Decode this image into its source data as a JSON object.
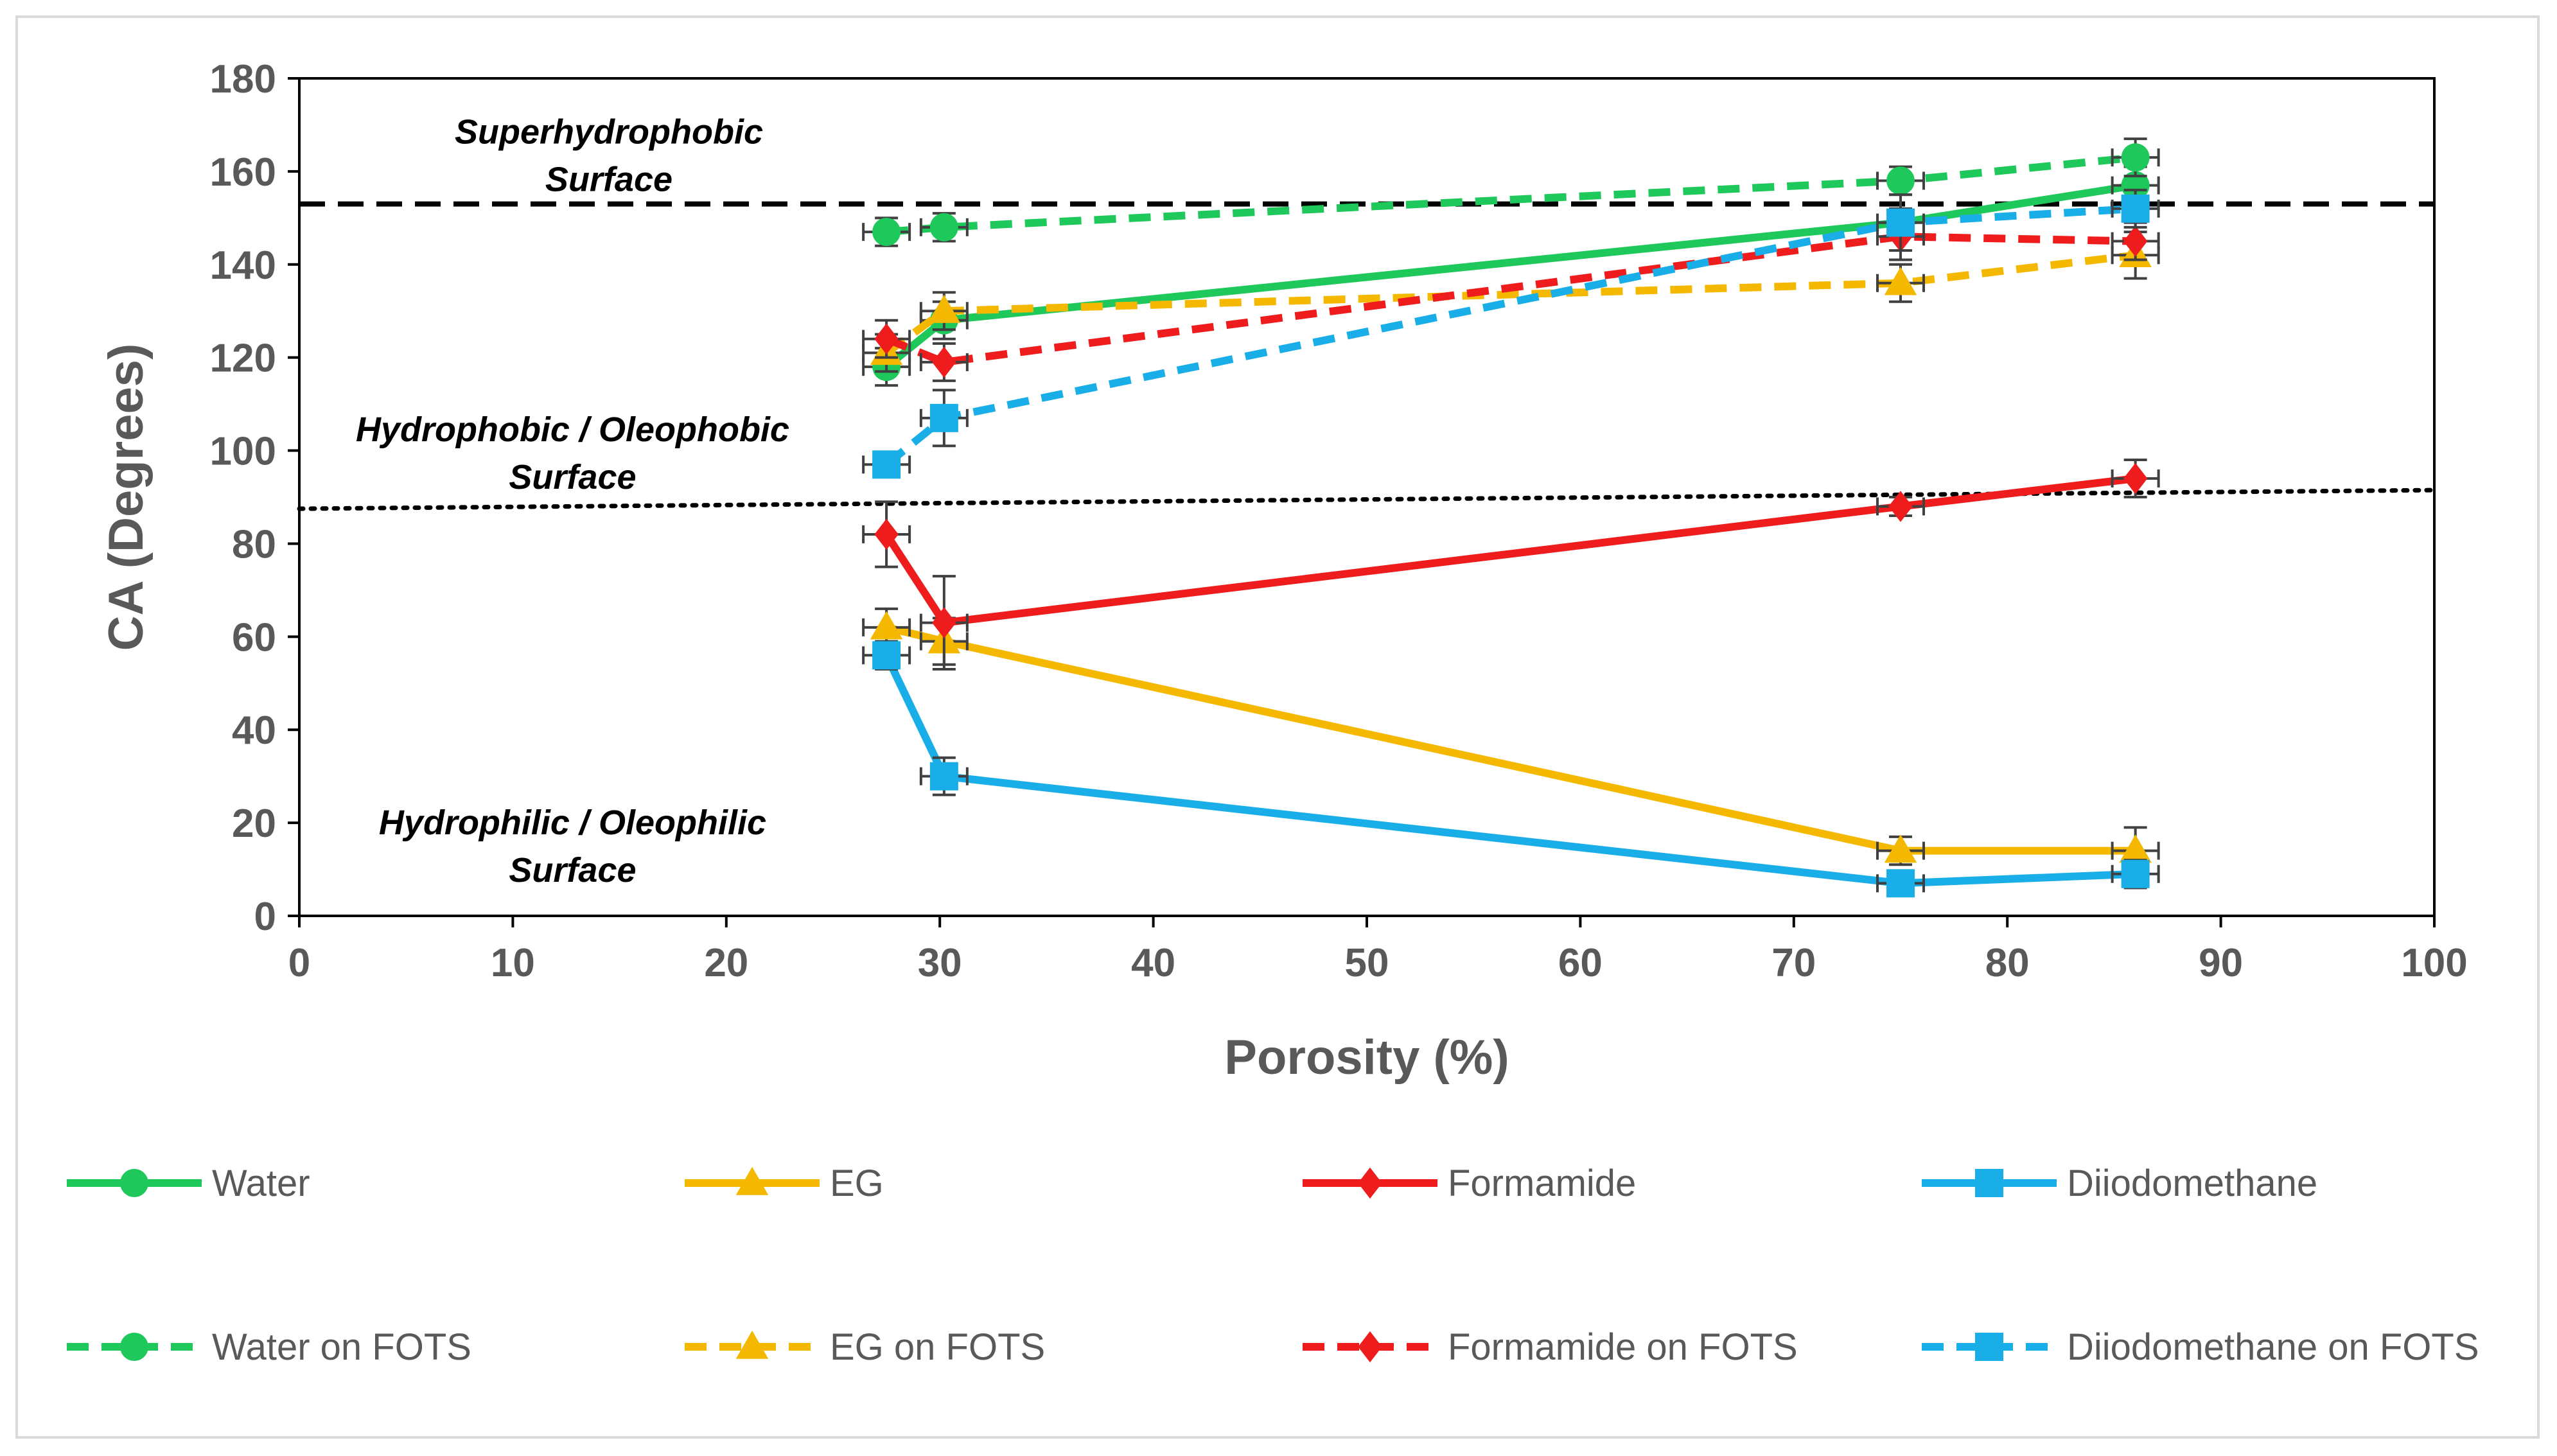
{
  "chart_data": {
    "type": "line",
    "xlabel": "Porosity  (%)",
    "ylabel": "CA (Degrees)",
    "xlim": [
      0,
      100
    ],
    "ylim": [
      0,
      180
    ],
    "xticks": [
      0,
      10,
      20,
      30,
      40,
      50,
      60,
      70,
      80,
      90,
      100
    ],
    "yticks": [
      0,
      20,
      40,
      60,
      80,
      100,
      120,
      140,
      160,
      180
    ],
    "grid": false,
    "legend_position": "bottom",
    "colors": {
      "green": "#1ec85a",
      "gold": "#f5b800",
      "red": "#ee1c1c",
      "blue": "#1aaee8",
      "errorbar": "#404040"
    },
    "reference_lines": [
      {
        "name": "superhydrophobic-threshold",
        "style": "dashed",
        "y_start": 153,
        "y_end": 153
      },
      {
        "name": "hydrophobic-threshold",
        "style": "dotted",
        "y_start": 87.5,
        "y_end": 91.5
      }
    ],
    "annotations": [
      {
        "name": "superhydrophobic-label",
        "lines": [
          "Superhydrophobic",
          "Surface"
        ]
      },
      {
        "name": "hydrophobic-label",
        "lines": [
          "Hydrophobic  /  Oleophobic",
          "Surface"
        ]
      },
      {
        "name": "hydrophilic-label",
        "lines": [
          "Hydrophilic  /  Oleophilic",
          "Surface"
        ]
      }
    ],
    "series": [
      {
        "name": "Water",
        "color": "green",
        "marker": "circle",
        "dashed": false,
        "x": [
          27.5,
          30.2,
          75,
          86
        ],
        "y": [
          118,
          128,
          149,
          157
        ],
        "err": [
          4,
          4,
          3,
          4
        ]
      },
      {
        "name": "EG",
        "color": "gold",
        "marker": "triangle",
        "dashed": false,
        "x": [
          27.5,
          30.2,
          75,
          86
        ],
        "y": [
          62,
          59,
          14,
          14
        ],
        "err": [
          4,
          5,
          3,
          5
        ]
      },
      {
        "name": "Formamide",
        "color": "red",
        "marker": "diamond",
        "dashed": false,
        "x": [
          27.5,
          30.2,
          75,
          86
        ],
        "y": [
          82,
          63,
          88,
          94
        ],
        "err": [
          7,
          10,
          2,
          4
        ]
      },
      {
        "name": "Diiodomethane",
        "color": "blue",
        "marker": "square",
        "dashed": false,
        "x": [
          27.5,
          30.2,
          75,
          86
        ],
        "y": [
          56,
          30,
          7,
          9
        ],
        "err": [
          3,
          4,
          2,
          3
        ]
      },
      {
        "name": "Water on FOTS",
        "color": "green",
        "marker": "circle",
        "dashed": true,
        "x": [
          27.5,
          30.2,
          75,
          86
        ],
        "y": [
          147,
          148,
          158,
          163
        ],
        "err": [
          3,
          3,
          3,
          4
        ]
      },
      {
        "name": "EG on FOTS",
        "color": "gold",
        "marker": "triangle",
        "dashed": true,
        "x": [
          27.5,
          30.2,
          75,
          86
        ],
        "y": [
          121,
          130,
          136,
          142
        ],
        "err": [
          4,
          4,
          4,
          5
        ]
      },
      {
        "name": "Formamide on FOTS",
        "color": "red",
        "marker": "diamond",
        "dashed": true,
        "x": [
          27.5,
          30.2,
          75,
          86
        ],
        "y": [
          124,
          119,
          146,
          145
        ],
        "err": [
          4,
          4,
          5,
          4
        ]
      },
      {
        "name": "Diiodomethane on FOTS",
        "color": "blue",
        "marker": "square",
        "dashed": true,
        "x": [
          27.5,
          30.2,
          75,
          86
        ],
        "y": [
          97,
          107,
          149,
          152
        ],
        "err": [
          2,
          6,
          6,
          4
        ]
      }
    ]
  }
}
